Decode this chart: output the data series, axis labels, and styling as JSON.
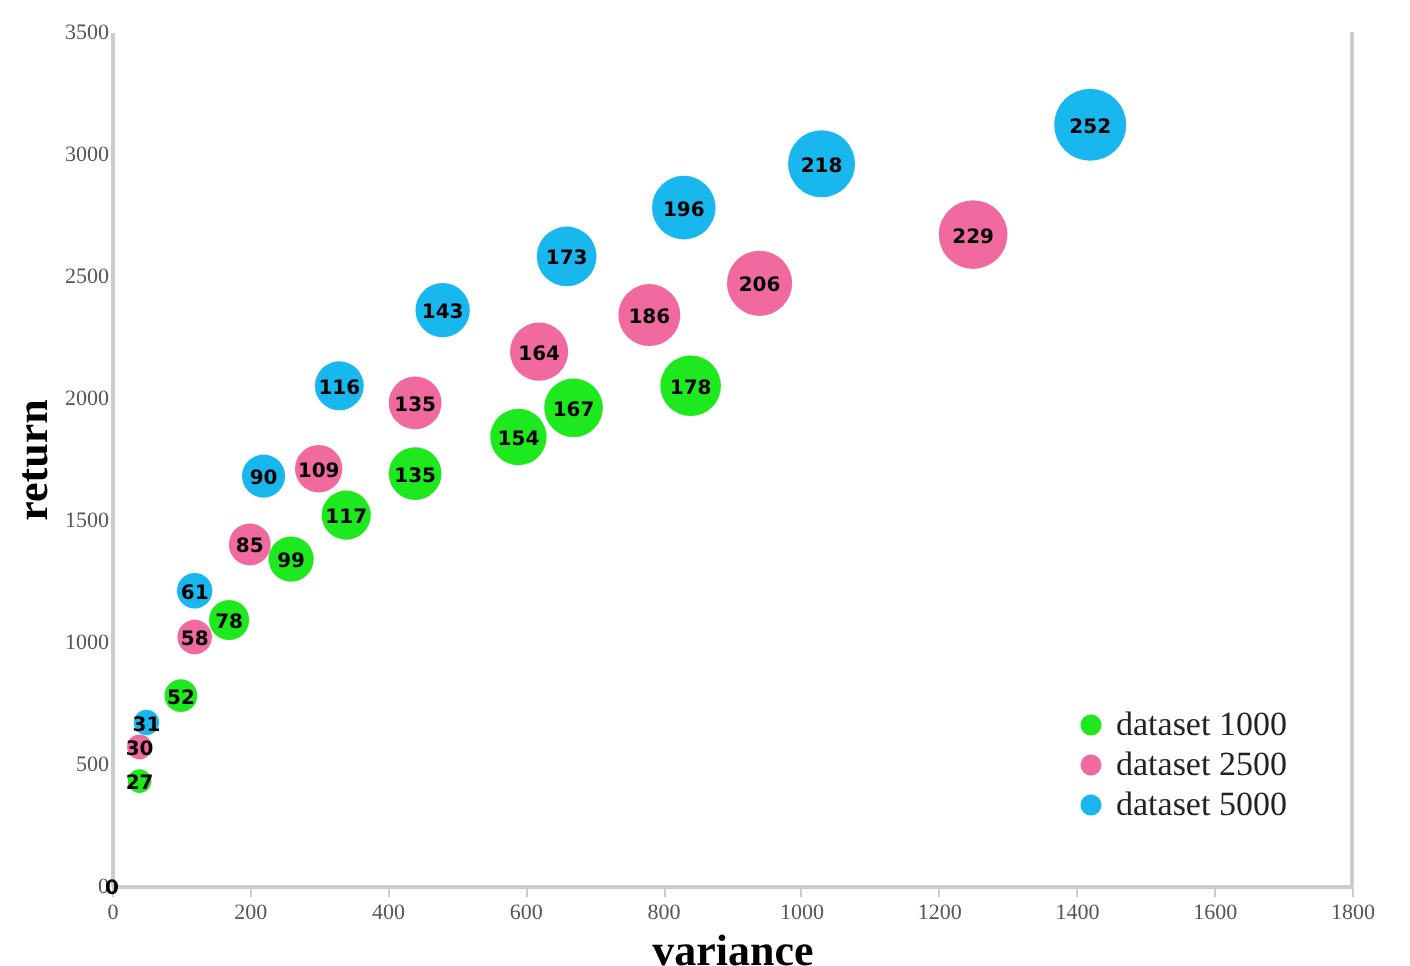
{
  "chart_data": {
    "type": "bubble",
    "xlabel": "variance",
    "ylabel": "return",
    "xlim": [
      0,
      1800
    ],
    "ylim": [
      0,
      3500
    ],
    "xticks": [
      0,
      200,
      400,
      600,
      800,
      1000,
      1200,
      1400,
      1600,
      1800
    ],
    "yticks": [
      0,
      500,
      1000,
      1500,
      2000,
      2500,
      3000,
      3500
    ],
    "grid": false,
    "legend": "bottom right",
    "annotations": [
      "0"
    ],
    "series": [
      {
        "name": "dataset 1000",
        "color": "#1ee81e",
        "x": [
          40,
          100,
          170,
          260,
          340,
          440,
          590,
          670,
          840
        ],
        "values": [
          430,
          780,
          1090,
          1340,
          1520,
          1690,
          1840,
          1960,
          2050
        ],
        "sizes": [
          27,
          52,
          78,
          99,
          117,
          135,
          154,
          167,
          178
        ],
        "value_labels": [
          "27",
          "52",
          "78",
          "99",
          "117",
          "135",
          "154",
          "167",
          "178"
        ]
      },
      {
        "name": "dataset 2500",
        "color": "#f06aa0",
        "x": [
          40,
          120,
          200,
          300,
          440,
          620,
          780,
          940,
          1250
        ],
        "values": [
          570,
          1020,
          1400,
          1710,
          1980,
          2190,
          2340,
          2470,
          2670
        ],
        "sizes": [
          30,
          58,
          85,
          109,
          135,
          164,
          186,
          206,
          229
        ],
        "value_labels": [
          "30",
          "58",
          "85",
          "109",
          "135",
          "164",
          "186",
          "206",
          "229"
        ]
      },
      {
        "name": "dataset 5000",
        "color": "#18b8ee",
        "x": [
          50,
          120,
          220,
          330,
          480,
          660,
          830,
          1030,
          1420
        ],
        "values": [
          670,
          1210,
          1680,
          2050,
          2360,
          2580,
          2780,
          2960,
          3120
        ],
        "sizes": [
          31,
          61,
          90,
          116,
          143,
          173,
          196,
          218,
          252
        ],
        "value_labels": [
          "31",
          "61",
          "90",
          "116",
          "143",
          "173",
          "196",
          "218",
          "252"
        ]
      }
    ]
  }
}
